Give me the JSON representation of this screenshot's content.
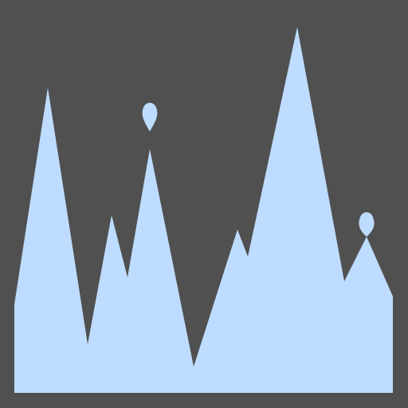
{
  "colors": {
    "background": "#505050",
    "fill": "#bedcff"
  },
  "shape": {
    "description_visible_text": ""
  }
}
